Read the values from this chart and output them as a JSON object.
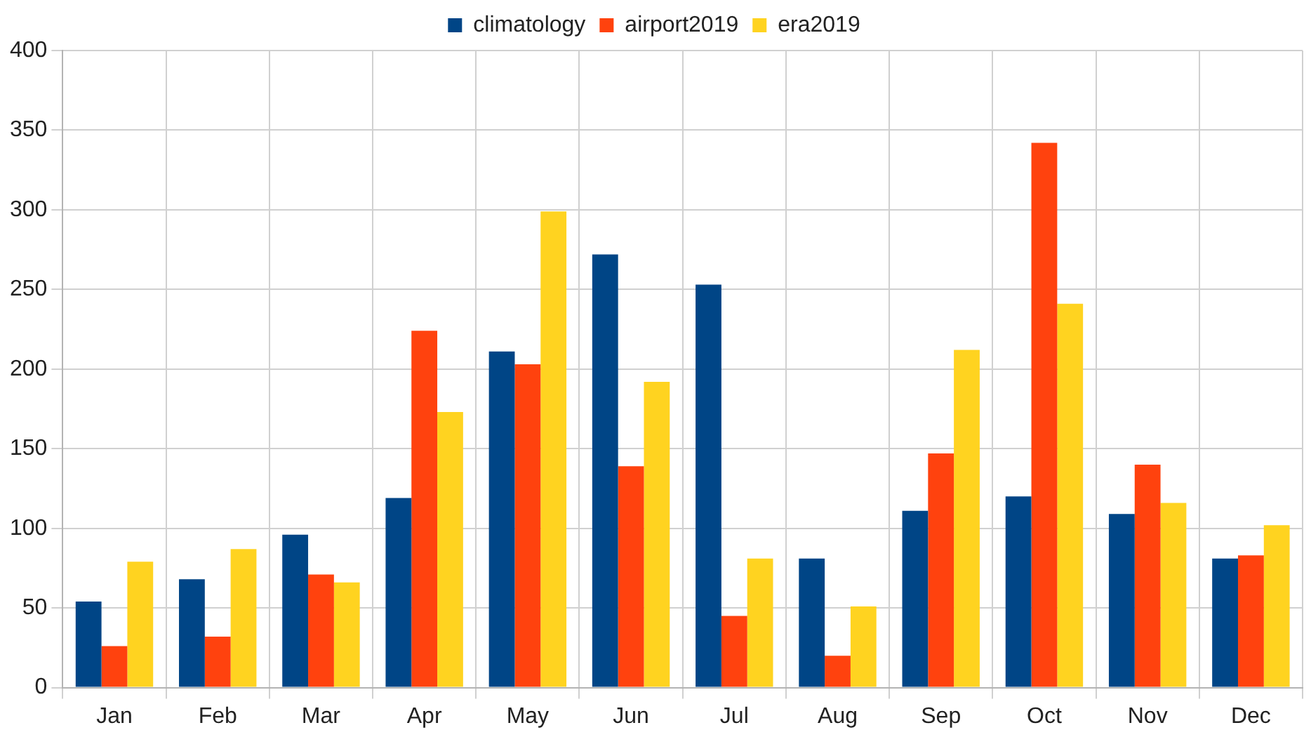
{
  "chart_data": {
    "type": "bar",
    "categories": [
      "Jan",
      "Feb",
      "Mar",
      "Apr",
      "May",
      "Jun",
      "Jul",
      "Aug",
      "Sep",
      "Oct",
      "Nov",
      "Dec"
    ],
    "series": [
      {
        "name": "climatology",
        "color": "#004586",
        "values": [
          54,
          68,
          96,
          119,
          211,
          272,
          253,
          81,
          111,
          120,
          109,
          81
        ]
      },
      {
        "name": "airport2019",
        "color": "#ff420e",
        "values": [
          26,
          32,
          71,
          224,
          203,
          139,
          45,
          20,
          147,
          342,
          140,
          83
        ]
      },
      {
        "name": "era2019",
        "color": "#ffd320",
        "values": [
          79,
          87,
          66,
          173,
          299,
          192,
          81,
          51,
          212,
          241,
          116,
          102
        ]
      }
    ],
    "ylim": [
      0,
      400
    ],
    "yticks": [
      0,
      50,
      100,
      150,
      200,
      250,
      300,
      350,
      400
    ],
    "grid": true,
    "legend": "top"
  }
}
